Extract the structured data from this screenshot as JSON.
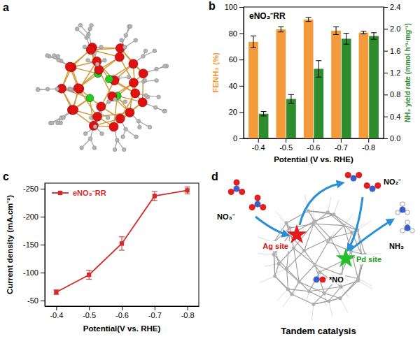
{
  "panel_labels": [
    "a",
    "b",
    "c",
    "d"
  ],
  "chart_data": [
    {
      "type": "bar",
      "annotation": "eNO₃⁻RR",
      "xlabel": "Potential (V vs. RHE)",
      "ylabel": "FENH₃ (%)",
      "y2label": "NH₃ yield rate (mmol h⁻¹·mg⁻¹)",
      "categories": [
        "-0.4",
        "-0.5",
        "-0.6",
        "-0.7",
        "-0.8"
      ],
      "series": [
        {
          "color": "#f39a3b",
          "values": [
            73.5,
            83,
            90.5,
            82,
            80.5
          ],
          "errors": [
            4.5,
            2,
            1.5,
            3,
            1
          ]
        },
        {
          "color": "#2e8b2e",
          "axis": "y2",
          "values": [
            0.45,
            0.72,
            1.27,
            1.82,
            1.87
          ],
          "errors": [
            0.04,
            0.08,
            0.15,
            0.1,
            0.06
          ]
        }
      ],
      "ylim": [
        0,
        100
      ],
      "yticks": [
        0,
        20,
        40,
        60,
        80,
        100
      ],
      "y2lim": [
        0,
        2.4
      ],
      "y2ticks": [
        {
          "value": 0,
          "label": "0.0"
        },
        0.4,
        0.8,
        1.2,
        1.6,
        {
          "value": 2,
          "label": "2.0"
        },
        2.4
      ]
    },
    {
      "type": "line",
      "xlabel": "Potential(V vs. RHE)",
      "ylabel": "Current density (mA.cm⁻²)",
      "legend": "top-left",
      "categories": [
        "-0.4",
        "-0.5",
        "-0.6",
        "-0.7",
        "-0.8"
      ],
      "series": [
        {
          "name": "eNO₃⁻RR",
          "color": "#d42a2a",
          "marker": "square",
          "values": [
            -65,
            -96,
            -152,
            -237,
            -247
          ],
          "errors": [
            4,
            8,
            12,
            8,
            6
          ]
        }
      ],
      "ylim": [
        -40,
        -260
      ],
      "yticks": [
        -50,
        -100,
        -150,
        -200,
        -250
      ]
    }
  ],
  "scheme": {
    "species": {
      "nitrate": "NO₃⁻",
      "nitrite": "NO₂⁻",
      "intermediate": "*NO",
      "ammonia": "NH₃"
    },
    "sites": {
      "ag": "Ag site",
      "pd": "Pd site"
    },
    "title": "Tandem catalysis"
  }
}
